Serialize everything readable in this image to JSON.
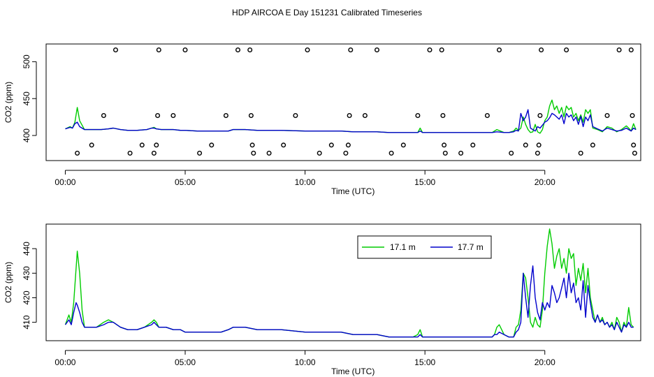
{
  "title": "HDP AIRCOA E  Day 151231  Calibrated Timeseries",
  "colors": {
    "series_a": "#00cc00",
    "series_b": "#0000cc",
    "axis": "#000000",
    "marker": "#000000"
  },
  "chart_data": [
    {
      "type": "line",
      "id": "top",
      "xlabel": "Time (UTC)",
      "ylabel": "CO2 (ppm)",
      "xlim": [
        -0.8,
        24.0
      ],
      "ylim": [
        366,
        524
      ],
      "x_ticks": [
        0,
        5,
        10,
        15,
        20
      ],
      "x_tick_labels": [
        "00:00",
        "05:00",
        "10:00",
        "15:00",
        "20:00"
      ],
      "y_ticks": [
        400,
        450,
        500
      ],
      "y_tick_labels": [
        "400",
        "450",
        "500"
      ],
      "series": [
        {
          "color": "#00cc00",
          "x": [
            0,
            0.2,
            0.3,
            0.4,
            0.5,
            0.6,
            0.8,
            1.0,
            1.5,
            1.8,
            2.0,
            2.3,
            2.6,
            3.0,
            3.4,
            3.6,
            3.7,
            3.8,
            4.0,
            4.2,
            4.5,
            4.8,
            5.0,
            5.5,
            6.0,
            6.5,
            6.8,
            7.0,
            7.5,
            8.0,
            9.0,
            10.0,
            11.0,
            11.5,
            12.0,
            12.5,
            13.0,
            13.5,
            14.0,
            14.5,
            14.7,
            14.8,
            14.9,
            15.0,
            15.5,
            16.0,
            16.5,
            17.0,
            17.5,
            17.8,
            18.0,
            18.3,
            18.5,
            18.7,
            18.8,
            18.9,
            19.0,
            19.1,
            19.2,
            19.3,
            19.4,
            19.5,
            19.6,
            19.7,
            19.8,
            19.9,
            20.0,
            20.1,
            20.2,
            20.3,
            20.4,
            20.5,
            20.6,
            20.7,
            20.8,
            20.9,
            21.0,
            21.1,
            21.2,
            21.3,
            21.4,
            21.5,
            21.6,
            21.7,
            21.8,
            21.9,
            22.0,
            22.2,
            22.4,
            22.6,
            22.8,
            23.0,
            23.2,
            23.4,
            23.5,
            23.6,
            23.7,
            23.8
          ],
          "y": [
            409,
            412,
            410,
            418,
            438,
            420,
            408,
            408,
            408,
            409,
            410,
            408,
            407,
            407,
            408,
            410,
            411,
            409,
            408,
            408,
            408,
            407,
            407,
            406,
            406,
            406,
            406,
            408,
            408,
            407,
            407,
            406,
            406,
            406,
            405,
            405,
            405,
            404,
            404,
            404,
            404,
            410,
            404,
            404,
            404,
            404,
            404,
            404,
            404,
            404,
            408,
            404,
            404,
            406,
            410,
            407,
            410,
            425,
            415,
            408,
            404,
            405,
            415,
            405,
            403,
            408,
            420,
            425,
            440,
            448,
            435,
            440,
            430,
            438,
            425,
            440,
            435,
            438,
            425,
            430,
            420,
            428,
            418,
            435,
            430,
            435,
            410,
            408,
            405,
            412,
            410,
            405,
            408,
            413,
            410,
            406,
            416,
            408
          ]
        },
        {
          "color": "#0000cc",
          "x": [
            0,
            0.2,
            0.3,
            0.4,
            0.5,
            0.6,
            0.8,
            1.0,
            1.5,
            1.8,
            2.0,
            2.3,
            2.6,
            3.0,
            3.4,
            3.6,
            3.7,
            3.8,
            4.0,
            4.2,
            4.5,
            4.8,
            5.0,
            5.5,
            6.0,
            6.5,
            6.8,
            7.0,
            7.5,
            8.0,
            9.0,
            10.0,
            11.0,
            11.5,
            12.0,
            12.5,
            13.0,
            13.5,
            14.0,
            14.5,
            14.7,
            14.8,
            14.9,
            15.0,
            15.5,
            16.0,
            16.5,
            17.0,
            17.5,
            17.8,
            18.0,
            18.3,
            18.5,
            18.7,
            18.8,
            18.9,
            19.0,
            19.1,
            19.2,
            19.3,
            19.4,
            19.5,
            19.6,
            19.7,
            19.8,
            19.9,
            20.0,
            20.1,
            20.2,
            20.3,
            20.4,
            20.5,
            20.6,
            20.7,
            20.8,
            20.9,
            21.0,
            21.1,
            21.2,
            21.3,
            21.4,
            21.5,
            21.6,
            21.7,
            21.8,
            21.9,
            22.0,
            22.2,
            22.4,
            22.6,
            22.8,
            23.0,
            23.2,
            23.4,
            23.5,
            23.6,
            23.7,
            23.8
          ],
          "y": [
            409,
            411,
            410,
            416,
            418,
            412,
            408,
            408,
            408,
            409,
            410,
            408,
            407,
            407,
            408,
            410,
            410,
            409,
            408,
            408,
            408,
            407,
            407,
            406,
            406,
            406,
            406,
            408,
            408,
            407,
            407,
            406,
            406,
            406,
            405,
            405,
            405,
            404,
            404,
            404,
            404,
            406,
            404,
            404,
            404,
            404,
            404,
            404,
            404,
            404,
            405,
            404,
            404,
            405,
            407,
            406,
            430,
            420,
            425,
            435,
            410,
            408,
            406,
            412,
            410,
            414,
            418,
            420,
            424,
            430,
            428,
            425,
            422,
            428,
            416,
            430,
            425,
            428,
            420,
            425,
            415,
            426,
            412,
            425,
            420,
            428,
            412,
            409,
            406,
            410,
            408,
            406,
            407,
            410,
            408,
            406,
            410,
            408
          ]
        }
      ],
      "markers": {
        "x": [
          0.5,
          1.1,
          1.6,
          2.1,
          2.7,
          3.2,
          3.7,
          3.8,
          3.85,
          3.9,
          4.5,
          5.0,
          5.6,
          6.1,
          6.7,
          7.2,
          7.7,
          7.75,
          7.8,
          7.85,
          8.5,
          9.1,
          9.6,
          10.1,
          10.6,
          11.1,
          11.7,
          11.8,
          11.85,
          11.9,
          12.5,
          13.0,
          13.6,
          14.1,
          14.7,
          15.2,
          15.7,
          15.75,
          15.8,
          15.85,
          16.5,
          17.0,
          17.6,
          18.1,
          18.6,
          19.2,
          19.7,
          19.75,
          19.8,
          19.85,
          20.9,
          21.5,
          22.0,
          22.6,
          23.1,
          23.6,
          23.65,
          23.7,
          23.75
        ],
        "y": [
          376,
          387,
          427,
          516,
          376,
          387,
          376,
          387,
          427,
          516,
          427,
          516,
          376,
          387,
          427,
          516,
          516,
          427,
          387,
          376,
          376,
          387,
          427,
          516,
          376,
          387,
          376,
          387,
          427,
          516,
          427,
          516,
          376,
          387,
          427,
          516,
          516,
          427,
          387,
          376,
          376,
          387,
          427,
          516,
          376,
          387,
          376,
          387,
          427,
          516,
          516,
          376,
          387,
          427,
          516,
          516,
          427,
          387,
          376
        ]
      }
    },
    {
      "type": "line",
      "id": "bottom",
      "xlabel": "Time (UTC)",
      "ylabel": "CO2 (ppm)",
      "xlim": [
        -0.8,
        24.0
      ],
      "ylim": [
        402.5,
        450
      ],
      "x_ticks": [
        0,
        5,
        10,
        15,
        20
      ],
      "x_tick_labels": [
        "00:00",
        "05:00",
        "10:00",
        "15:00",
        "20:00"
      ],
      "y_ticks": [
        410,
        420,
        430,
        440
      ],
      "y_tick_labels": [
        "410",
        "420",
        "430",
        "440"
      ],
      "legend": {
        "position": "top-right",
        "entries": [
          "17.1 m",
          "17.7 m"
        ]
      },
      "series": [
        {
          "name": "17.1 m",
          "color": "#00cc00",
          "x": [
            0,
            0.15,
            0.25,
            0.35,
            0.45,
            0.5,
            0.6,
            0.7,
            0.8,
            1.0,
            1.3,
            1.6,
            1.8,
            2.0,
            2.3,
            2.6,
            3.0,
            3.3,
            3.6,
            3.7,
            3.8,
            3.9,
            4.2,
            4.5,
            4.8,
            5.0,
            5.5,
            6.0,
            6.5,
            6.8,
            7.0,
            7.5,
            8.0,
            9.0,
            10.0,
            11.0,
            11.5,
            12.0,
            12.5,
            13.0,
            13.5,
            14.0,
            14.5,
            14.7,
            14.8,
            14.9,
            15.0,
            15.5,
            16.0,
            16.5,
            17.0,
            17.5,
            17.8,
            17.9,
            18.0,
            18.1,
            18.3,
            18.5,
            18.7,
            18.8,
            18.9,
            19.0,
            19.1,
            19.2,
            19.3,
            19.4,
            19.5,
            19.6,
            19.7,
            19.8,
            19.9,
            20.0,
            20.1,
            20.2,
            20.3,
            20.4,
            20.5,
            20.6,
            20.7,
            20.8,
            20.9,
            21.0,
            21.1,
            21.2,
            21.3,
            21.4,
            21.5,
            21.6,
            21.7,
            21.8,
            21.9,
            22.0,
            22.1,
            22.2,
            22.3,
            22.4,
            22.5,
            22.6,
            22.7,
            22.8,
            22.9,
            23.0,
            23.1,
            23.2,
            23.3,
            23.4,
            23.5,
            23.6,
            23.7
          ],
          "y": [
            409,
            413,
            410,
            418,
            432,
            439,
            430,
            415,
            408,
            408,
            408,
            410,
            411,
            410,
            408,
            407,
            407,
            408,
            410,
            411,
            410,
            408,
            408,
            407,
            407,
            406,
            406,
            406,
            406,
            407,
            408,
            408,
            407,
            407,
            406,
            406,
            406,
            405,
            405,
            405,
            404,
            404,
            404,
            405,
            407,
            404,
            404,
            404,
            404,
            404,
            404,
            404,
            404,
            405,
            408,
            409,
            405,
            404,
            404,
            408,
            409,
            415,
            430,
            428,
            420,
            410,
            408,
            412,
            409,
            408,
            415,
            430,
            441,
            448,
            442,
            432,
            437,
            440,
            432,
            436,
            430,
            440,
            436,
            438,
            425,
            432,
            427,
            434,
            422,
            432,
            420,
            415,
            410,
            413,
            410,
            412,
            409,
            410,
            408,
            410,
            407,
            412,
            410,
            406,
            410,
            408,
            416,
            409,
            408
          ]
        },
        {
          "name": "17.7 m",
          "color": "#0000cc",
          "x": [
            0,
            0.15,
            0.25,
            0.35,
            0.45,
            0.5,
            0.6,
            0.7,
            0.8,
            1.0,
            1.3,
            1.6,
            1.8,
            2.0,
            2.3,
            2.6,
            3.0,
            3.3,
            3.6,
            3.7,
            3.8,
            3.9,
            4.2,
            4.5,
            4.8,
            5.0,
            5.5,
            6.0,
            6.5,
            6.8,
            7.0,
            7.5,
            8.0,
            9.0,
            10.0,
            11.0,
            11.5,
            12.0,
            12.5,
            13.0,
            13.5,
            14.0,
            14.5,
            14.7,
            14.8,
            14.9,
            15.0,
            15.5,
            16.0,
            16.5,
            17.0,
            17.5,
            17.8,
            17.9,
            18.0,
            18.1,
            18.3,
            18.5,
            18.7,
            18.8,
            18.9,
            19.0,
            19.1,
            19.2,
            19.3,
            19.4,
            19.5,
            19.6,
            19.7,
            19.8,
            19.9,
            20.0,
            20.1,
            20.2,
            20.3,
            20.4,
            20.5,
            20.6,
            20.7,
            20.8,
            20.9,
            21.0,
            21.1,
            21.2,
            21.3,
            21.4,
            21.5,
            21.6,
            21.7,
            21.8,
            21.9,
            22.0,
            22.1,
            22.2,
            22.3,
            22.4,
            22.5,
            22.6,
            22.7,
            22.8,
            22.9,
            23.0,
            23.1,
            23.2,
            23.3,
            23.4,
            23.5,
            23.6,
            23.7
          ],
          "y": [
            409,
            411,
            409,
            414,
            418,
            417,
            414,
            410,
            408,
            408,
            408,
            409,
            410,
            410,
            408,
            407,
            407,
            408,
            409,
            410,
            409,
            408,
            408,
            407,
            407,
            406,
            406,
            406,
            406,
            407,
            408,
            408,
            407,
            407,
            406,
            406,
            406,
            405,
            405,
            405,
            404,
            404,
            404,
            404,
            405,
            404,
            404,
            404,
            404,
            404,
            404,
            404,
            404,
            405,
            405,
            406,
            405,
            404,
            404,
            406,
            407,
            410,
            430,
            420,
            412,
            425,
            433,
            420,
            414,
            411,
            418,
            415,
            418,
            416,
            425,
            422,
            418,
            420,
            424,
            428,
            420,
            430,
            422,
            426,
            418,
            420,
            415,
            427,
            412,
            425,
            418,
            412,
            410,
            413,
            410,
            411,
            409,
            410,
            408,
            409,
            407,
            410,
            408,
            406,
            409,
            408,
            410,
            408,
            408
          ]
        }
      ]
    }
  ]
}
